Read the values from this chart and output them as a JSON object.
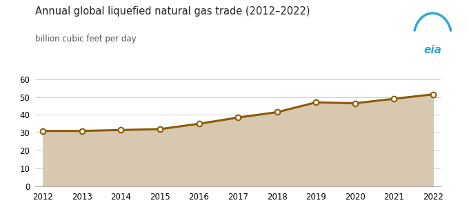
{
  "title": "Annual global liquefied natural gas trade (2012–2022)",
  "subtitle": "billion cubic feet per day",
  "years": [
    2012,
    2013,
    2014,
    2015,
    2016,
    2017,
    2018,
    2019,
    2020,
    2021,
    2022
  ],
  "values": [
    31.0,
    31.0,
    31.5,
    32.0,
    35.0,
    38.5,
    41.5,
    47.0,
    46.5,
    49.0,
    51.5
  ],
  "line_color": "#8B5A00",
  "fill_color": "#D9C8B0",
  "marker_color": "#8B5A00",
  "marker_face": "#FFFFFF",
  "background_color": "#FFFFFF",
  "ylim": [
    0,
    60
  ],
  "yticks": [
    0,
    10,
    20,
    30,
    40,
    50,
    60
  ],
  "grid_color": "#CCCCCC",
  "title_fontsize": 10.5,
  "subtitle_fontsize": 8.5,
  "tick_fontsize": 8.5,
  "line_width": 2.2,
  "marker_size": 5.5,
  "eia_color": "#2FA8D5"
}
